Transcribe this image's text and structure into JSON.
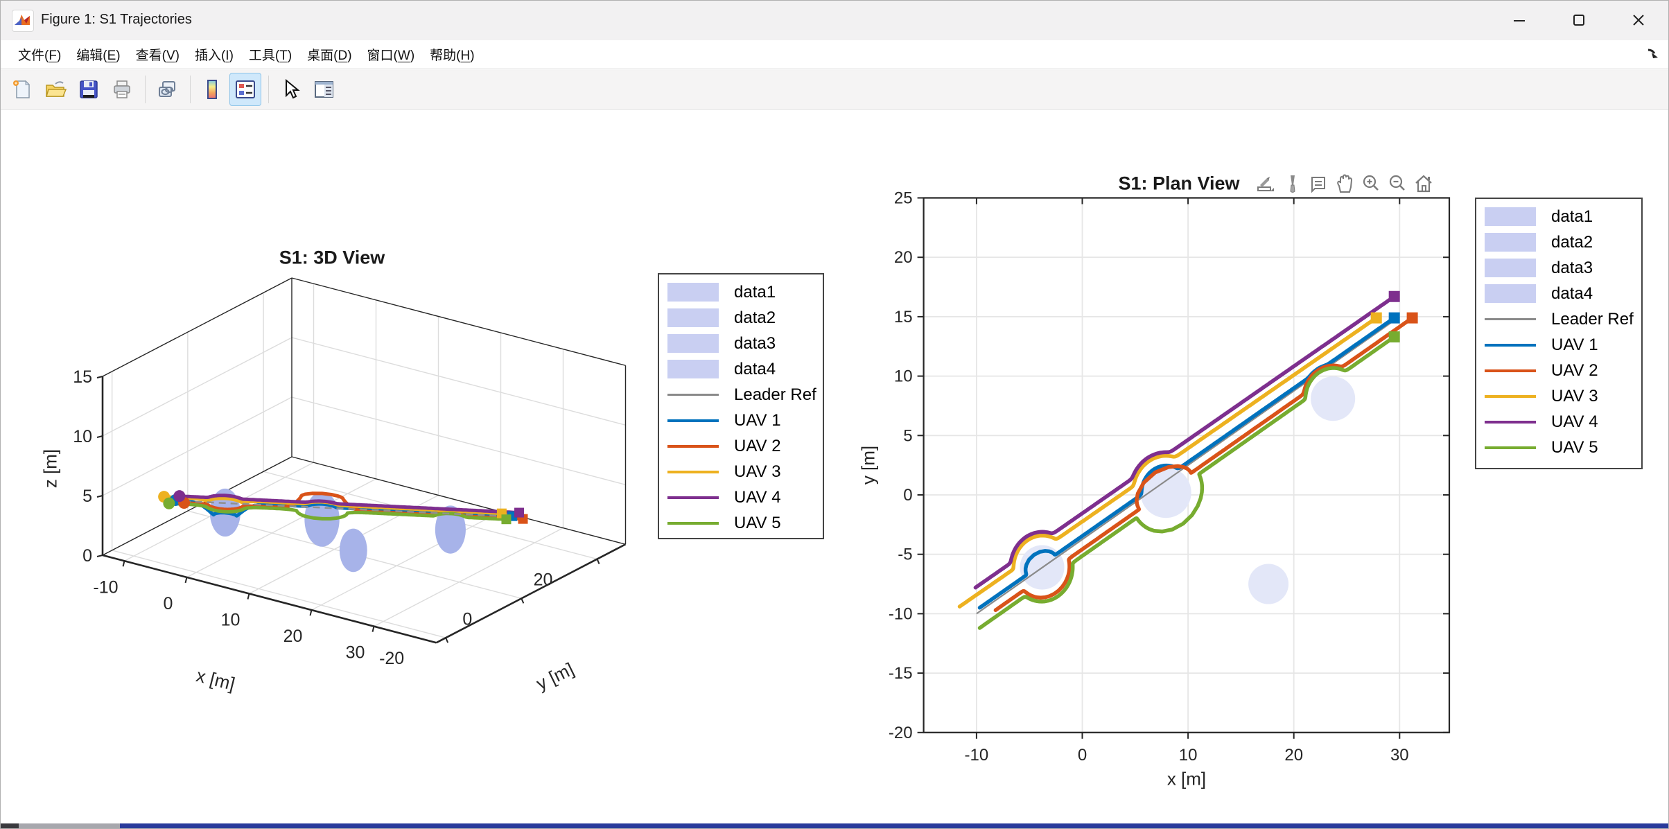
{
  "window": {
    "title": "Figure 1: S1 Trajectories",
    "app_icon": "matlab-logo",
    "controls": {
      "minimize": "minimize",
      "maximize": "maximize",
      "close": "close"
    },
    "menu": {
      "items": [
        {
          "text": "文件",
          "key": "F"
        },
        {
          "text": "编辑",
          "key": "E"
        },
        {
          "text": "查看",
          "key": "V"
        },
        {
          "text": "插入",
          "key": "I"
        },
        {
          "text": "工具",
          "key": "T"
        },
        {
          "text": "桌面",
          "key": "D"
        },
        {
          "text": "窗口",
          "key": "W"
        },
        {
          "text": "帮助",
          "key": "H"
        }
      ]
    },
    "toolbar": {
      "buttons": [
        "new-figure",
        "open-file",
        "save-figure",
        "print-figure",
        "link-plot",
        "insert-colorbar",
        "insert-legend",
        "edit-plot",
        "property-inspector"
      ],
      "active_button": "insert-legend"
    },
    "dock_icon": "dock-arrow"
  },
  "legend": {
    "items": [
      {
        "label": "data1",
        "type": "patch",
        "color": "#c9cff2"
      },
      {
        "label": "data2",
        "type": "patch",
        "color": "#c9cff2"
      },
      {
        "label": "data3",
        "type": "patch",
        "color": "#c9cff2"
      },
      {
        "label": "data4",
        "type": "patch",
        "color": "#c9cff2"
      },
      {
        "label": "Leader Ref",
        "type": "line",
        "color": "#8a8a8a"
      },
      {
        "label": "UAV 1",
        "type": "line",
        "color": "#0072BD"
      },
      {
        "label": "UAV 2",
        "type": "line",
        "color": "#D95319"
      },
      {
        "label": "UAV 3",
        "type": "line",
        "color": "#EDB120"
      },
      {
        "label": "UAV 4",
        "type": "line",
        "color": "#7E2F8E"
      },
      {
        "label": "UAV 5",
        "type": "line",
        "color": "#77AC30"
      }
    ]
  },
  "axes_toolbar": {
    "icons": [
      "export",
      "brush",
      "datatips",
      "pan",
      "zoom-in",
      "zoom-out",
      "restore-view"
    ]
  },
  "chart_data": [
    {
      "id": "view3d",
      "type": "line3d",
      "title": "S1: 3D View",
      "xlabel": "x [m]",
      "ylabel": "y [m]",
      "zlabel": "z [m]",
      "xticks": [
        -10,
        0,
        10,
        20,
        30
      ],
      "yticks": [
        -20,
        0,
        20
      ],
      "zticks": [
        0,
        5,
        10,
        15
      ],
      "xlim": [
        -13.5,
        40
      ],
      "ylim": [
        -22.5,
        27.5
      ],
      "zlim": [
        0,
        15
      ],
      "grid": true,
      "shares_series_with_plan_view": true,
      "formation_altitude_m": 3
    },
    {
      "id": "plan",
      "type": "line",
      "title": "S1: Plan View",
      "xlabel": "x [m]",
      "ylabel": "y [m]",
      "xlim": [
        -15,
        34.7
      ],
      "ylim": [
        -20,
        25
      ],
      "xticks": [
        -10,
        0,
        10,
        20,
        30
      ],
      "yticks": [
        -20,
        -15,
        -10,
        -5,
        0,
        5,
        10,
        15,
        20,
        25
      ],
      "grid": true,
      "obstacles": [
        {
          "x": -3.8,
          "y": -6.1,
          "r": 2.1
        },
        {
          "x": 7.9,
          "y": 0.2,
          "r": 2.4
        },
        {
          "x": 23.7,
          "y": 8.1,
          "r": 2.1
        },
        {
          "x": 17.6,
          "y": -7.5,
          "r": 1.9
        }
      ],
      "series": [
        {
          "name": "Leader Ref",
          "color": "#8a8a8a",
          "width": 2.2,
          "style": "leader",
          "start": [
            -10,
            -10
          ],
          "end": [
            30,
            15
          ],
          "avoid": [
            0,
            0,
            0,
            0
          ],
          "alt": 3,
          "z_bumps": []
        },
        {
          "name": "UAV 1",
          "color": "#0072BD",
          "width": 5.5,
          "start": [
            -9.7,
            -9.5
          ],
          "end": [
            29.5,
            14.9
          ],
          "avoid": [
            1.6,
            2.3,
            2.9,
            0
          ],
          "alt": 3,
          "z_bumps": [
            {
              "obstacle": 0,
              "dz": -1.6,
              "w": 2.6
            }
          ]
        },
        {
          "name": "UAV 2",
          "color": "#D95319",
          "width": 5.5,
          "start": [
            -8.2,
            -9.7
          ],
          "end": [
            31.2,
            14.9
          ],
          "avoid": [
            2.6,
            2.9,
            2.8,
            0
          ],
          "alt": 3,
          "z_bumps": [
            {
              "obstacle": 1,
              "dz": 3.3,
              "w": 2.6
            }
          ]
        },
        {
          "name": "UAV 3",
          "color": "#EDB120",
          "width": 5.5,
          "start": [
            -11.6,
            -9.4
          ],
          "end": [
            27.8,
            14.9
          ],
          "avoid": [
            2.7,
            3.1,
            0,
            0
          ],
          "alt": 3,
          "z_bumps": [
            {
              "obstacle": 0,
              "dz": -0.8,
              "w": 2.2
            }
          ]
        },
        {
          "name": "UAV 4",
          "color": "#7E2F8E",
          "width": 5.5,
          "start": [
            -10.1,
            -7.8
          ],
          "end": [
            29.5,
            16.7
          ],
          "avoid": [
            3.0,
            3.4,
            0,
            0
          ],
          "alt": 3,
          "z_bumps": []
        },
        {
          "name": "UAV 5",
          "color": "#77AC30",
          "width": 5.5,
          "start": [
            -9.7,
            -11.2
          ],
          "end": [
            29.5,
            13.3
          ],
          "avoid": [
            2.9,
            3.5,
            2.6,
            0
          ],
          "alt": 3,
          "z_bumps": [
            {
              "obstacle": 0,
              "dz": -0.7,
              "w": 2.2
            },
            {
              "obstacle": 1,
              "dz": -0.6,
              "w": 2.6
            }
          ]
        }
      ]
    }
  ]
}
